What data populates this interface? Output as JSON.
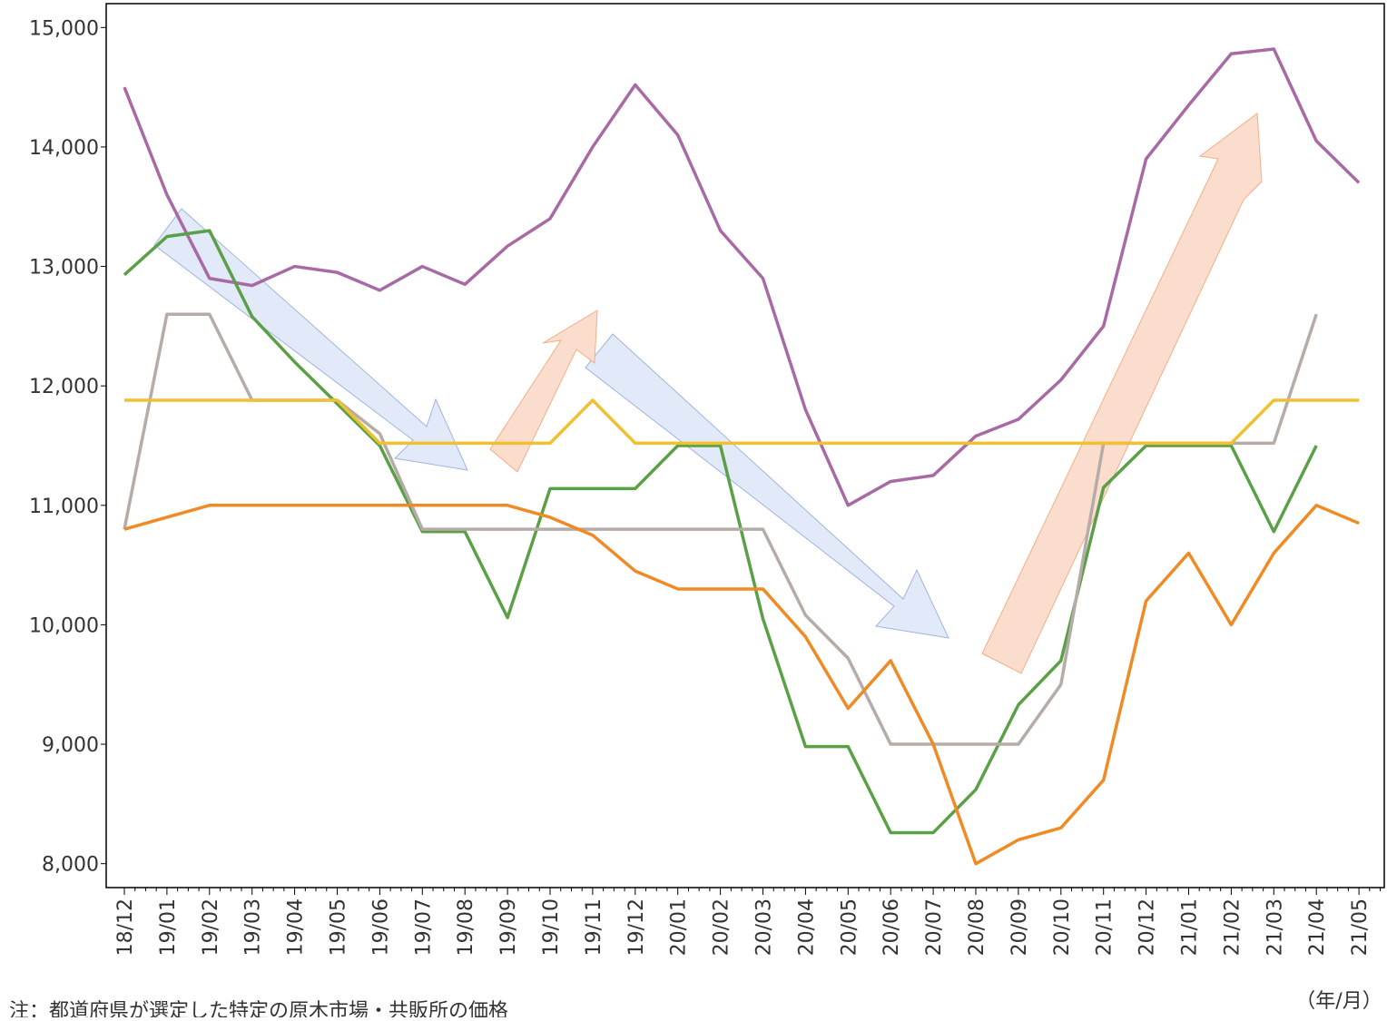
{
  "chart_data": {
    "type": "line",
    "categories": [
      "18/12",
      "19/01",
      "19/02",
      "19/03",
      "19/04",
      "19/05",
      "19/06",
      "19/07",
      "19/08",
      "19/09",
      "19/10",
      "19/11",
      "19/12",
      "20/01",
      "20/02",
      "20/03",
      "20/04",
      "20/05",
      "20/06",
      "20/07",
      "20/08",
      "20/09",
      "20/10",
      "20/11",
      "20/12",
      "21/01",
      "21/02",
      "21/03",
      "21/04",
      "21/05"
    ],
    "series": [
      {
        "color": "#a86aa4",
        "values": [
          14500,
          13600,
          12900,
          12840,
          13000,
          12950,
          12800,
          13000,
          12850,
          13170,
          13400,
          14000,
          14520,
          14100,
          13300,
          12900,
          11800,
          11000,
          11200,
          11250,
          11580,
          11720,
          12050,
          12500,
          13900,
          14350,
          14780,
          14820,
          14050,
          13700
        ]
      },
      {
        "color": "#5aa046",
        "values": [
          12930,
          13250,
          13300,
          12580,
          12200,
          11850,
          11500,
          10780,
          10780,
          10060,
          11140,
          11140,
          11140,
          11500,
          11500,
          10050,
          8980,
          8980,
          8260,
          8260,
          8620,
          9330,
          9700,
          11150,
          11500,
          11500,
          11500,
          10780,
          11500,
          null
        ]
      },
      {
        "color": "#b5aba7",
        "values": [
          10800,
          12600,
          12600,
          11880,
          11880,
          11880,
          11600,
          10800,
          10800,
          10800,
          10800,
          10800,
          10800,
          10800,
          10800,
          10800,
          10080,
          9720,
          9000,
          9000,
          9000,
          9000,
          9500,
          11520,
          11520,
          11520,
          11520,
          11520,
          12600,
          null
        ]
      },
      {
        "color": "#f0c030",
        "values": [
          11880,
          11880,
          11880,
          11880,
          11880,
          11880,
          11520,
          11520,
          11520,
          11520,
          11520,
          11880,
          11520,
          11520,
          11520,
          11520,
          11520,
          11520,
          11520,
          11520,
          11520,
          11520,
          11520,
          11520,
          11520,
          11520,
          11520,
          11880,
          11880,
          11880
        ]
      },
      {
        "color": "#f08a24",
        "values": [
          10800,
          10900,
          11000,
          11000,
          11000,
          11000,
          11000,
          11000,
          11000,
          11000,
          10900,
          10750,
          10450,
          10300,
          10300,
          10300,
          9900,
          9300,
          9700,
          9000,
          8000,
          8200,
          8300,
          8700,
          10200,
          10600,
          10000,
          10600,
          11000,
          10850
        ]
      }
    ],
    "ylim": [
      7800,
      15200
    ],
    "yticks": [
      {
        "value": 8000,
        "label": "8,000"
      },
      {
        "value": 9000,
        "label": "9,000"
      },
      {
        "value": 10000,
        "label": "10,000"
      },
      {
        "value": 11000,
        "label": "11,000"
      },
      {
        "value": 12000,
        "label": "12,000"
      },
      {
        "value": 13000,
        "label": "13,000"
      },
      {
        "value": 14000,
        "label": "14,000"
      },
      {
        "value": 15000,
        "label": "15,000"
      }
    ],
    "x_unit": "（年/月）",
    "note": "注：都道府県が選定した特定の原木市場・共販所の価格"
  }
}
